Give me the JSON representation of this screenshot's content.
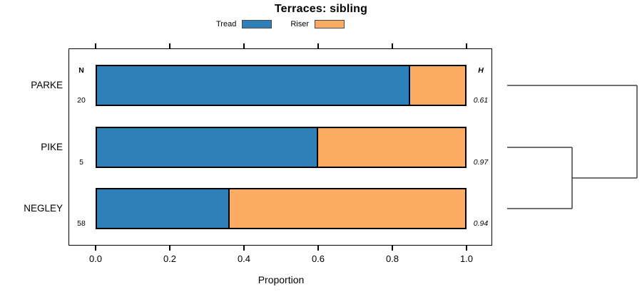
{
  "figure": {
    "title": "Terraces: sibling"
  },
  "chart_data": {
    "type": "bar",
    "subtype": "stacked-horizontal-proportion",
    "title": "Terraces: sibling",
    "xlabel": "Proportion",
    "xlim": [
      0,
      1
    ],
    "x_tick_labels": [
      "0.0",
      "0.2",
      "0.4",
      "0.6",
      "0.8",
      "1.0"
    ],
    "grid": false,
    "legend_position": "top-center",
    "categories": [
      "PARKE",
      "PIKE",
      "NEGLEY"
    ],
    "series": [
      {
        "name": "Tread",
        "color": "#2E80B8",
        "values": [
          0.85,
          0.6,
          0.36
        ]
      },
      {
        "name": "Riser",
        "color": "#FBAC62",
        "values": [
          0.15,
          0.4,
          0.64
        ]
      }
    ],
    "columns": {
      "n_header": "N",
      "h_header": "H"
    },
    "n_values": [
      "20",
      "5",
      "58"
    ],
    "h_values": [
      "0.61",
      "0.97",
      "0.94"
    ],
    "bar_border_color": "#000000",
    "dendrogram": {
      "side": "right",
      "line_color": "#404040",
      "leaves": [
        "PARKE",
        "PIKE",
        "NEGLEY"
      ],
      "joins": [
        {
          "a": "leaf:1",
          "b": "leaf:2",
          "x_frac": 0.5
        },
        {
          "a": "leaf:0",
          "b": "join:0",
          "x_frac": 1.0
        }
      ]
    }
  }
}
